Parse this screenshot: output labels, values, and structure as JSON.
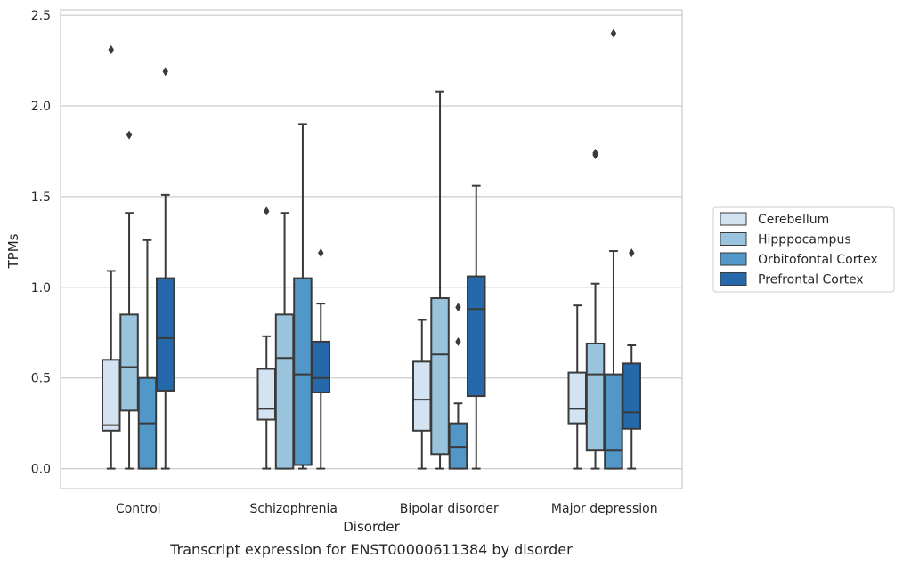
{
  "chart_data": {
    "type": "box",
    "title": "",
    "caption": "Transcript expression for ENST00000611384 by disorder",
    "xlabel": "Disorder",
    "ylabel": "TPMs",
    "ylim": [
      -0.11,
      2.53
    ],
    "yticks": [
      "0.0",
      "0.5",
      "1.0",
      "1.5",
      "2.0",
      "2.5"
    ],
    "grid": "horizontal",
    "legend_position": "right",
    "categories": [
      "Control",
      "Schizophrenia",
      "Bipolar disorder",
      "Major depression"
    ],
    "series": [
      {
        "name": "Cerebellum",
        "color": "#d3e3f2",
        "boxes": [
          {
            "whisker_low": 0.0,
            "q1": 0.21,
            "median": 0.24,
            "q3": 0.6,
            "whisker_high": 1.09,
            "outliers": [
              2.31
            ]
          },
          {
            "whisker_low": 0.0,
            "q1": 0.27,
            "median": 0.33,
            "q3": 0.55,
            "whisker_high": 0.73,
            "outliers": [
              1.42
            ]
          },
          {
            "whisker_low": 0.0,
            "q1": 0.21,
            "median": 0.38,
            "q3": 0.59,
            "whisker_high": 0.82,
            "outliers": []
          },
          {
            "whisker_low": 0.0,
            "q1": 0.25,
            "median": 0.33,
            "q3": 0.53,
            "whisker_high": 0.9,
            "outliers": []
          }
        ]
      },
      {
        "name": "Hipppocampus",
        "color": "#9ac4dd",
        "boxes": [
          {
            "whisker_low": 0.0,
            "q1": 0.32,
            "median": 0.56,
            "q3": 0.85,
            "whisker_high": 1.41,
            "outliers": [
              1.84
            ]
          },
          {
            "whisker_low": 0.0,
            "q1": 0.0,
            "median": 0.61,
            "q3": 0.85,
            "whisker_high": 1.41,
            "outliers": []
          },
          {
            "whisker_low": 0.0,
            "q1": 0.08,
            "median": 0.63,
            "q3": 0.94,
            "whisker_high": 2.08,
            "outliers": []
          },
          {
            "whisker_low": 0.0,
            "q1": 0.1,
            "median": 0.52,
            "q3": 0.69,
            "whisker_high": 1.02,
            "outliers": [
              1.73,
              1.74
            ]
          }
        ]
      },
      {
        "name": "Orbitofontal Cortex",
        "color": "#5198c8",
        "boxes": [
          {
            "whisker_low": 0.0,
            "q1": 0.0,
            "median": 0.25,
            "q3": 0.5,
            "whisker_high": 1.26,
            "outliers": []
          },
          {
            "whisker_low": 0.0,
            "q1": 0.02,
            "median": 0.52,
            "q3": 1.05,
            "whisker_high": 1.9,
            "outliers": []
          },
          {
            "whisker_low": 0.0,
            "q1": 0.0,
            "median": 0.12,
            "q3": 0.25,
            "whisker_high": 0.36,
            "outliers": [
              0.7,
              0.89
            ]
          },
          {
            "whisker_low": 0.0,
            "q1": 0.0,
            "median": 0.1,
            "q3": 0.52,
            "whisker_high": 1.2,
            "outliers": [
              2.4
            ]
          }
        ]
      },
      {
        "name": "Prefrontal Cortex",
        "color": "#2669aa",
        "boxes": [
          {
            "whisker_low": 0.0,
            "q1": 0.43,
            "median": 0.72,
            "q3": 1.05,
            "whisker_high": 1.51,
            "outliers": [
              2.19
            ]
          },
          {
            "whisker_low": 0.0,
            "q1": 0.42,
            "median": 0.5,
            "q3": 0.7,
            "whisker_high": 0.91,
            "outliers": [
              1.19
            ]
          },
          {
            "whisker_low": 0.0,
            "q1": 0.4,
            "median": 0.88,
            "q3": 1.06,
            "whisker_high": 1.56,
            "outliers": []
          },
          {
            "whisker_low": 0.0,
            "q1": 0.22,
            "median": 0.31,
            "q3": 0.58,
            "whisker_high": 0.68,
            "outliers": [
              1.19
            ]
          }
        ]
      }
    ]
  }
}
